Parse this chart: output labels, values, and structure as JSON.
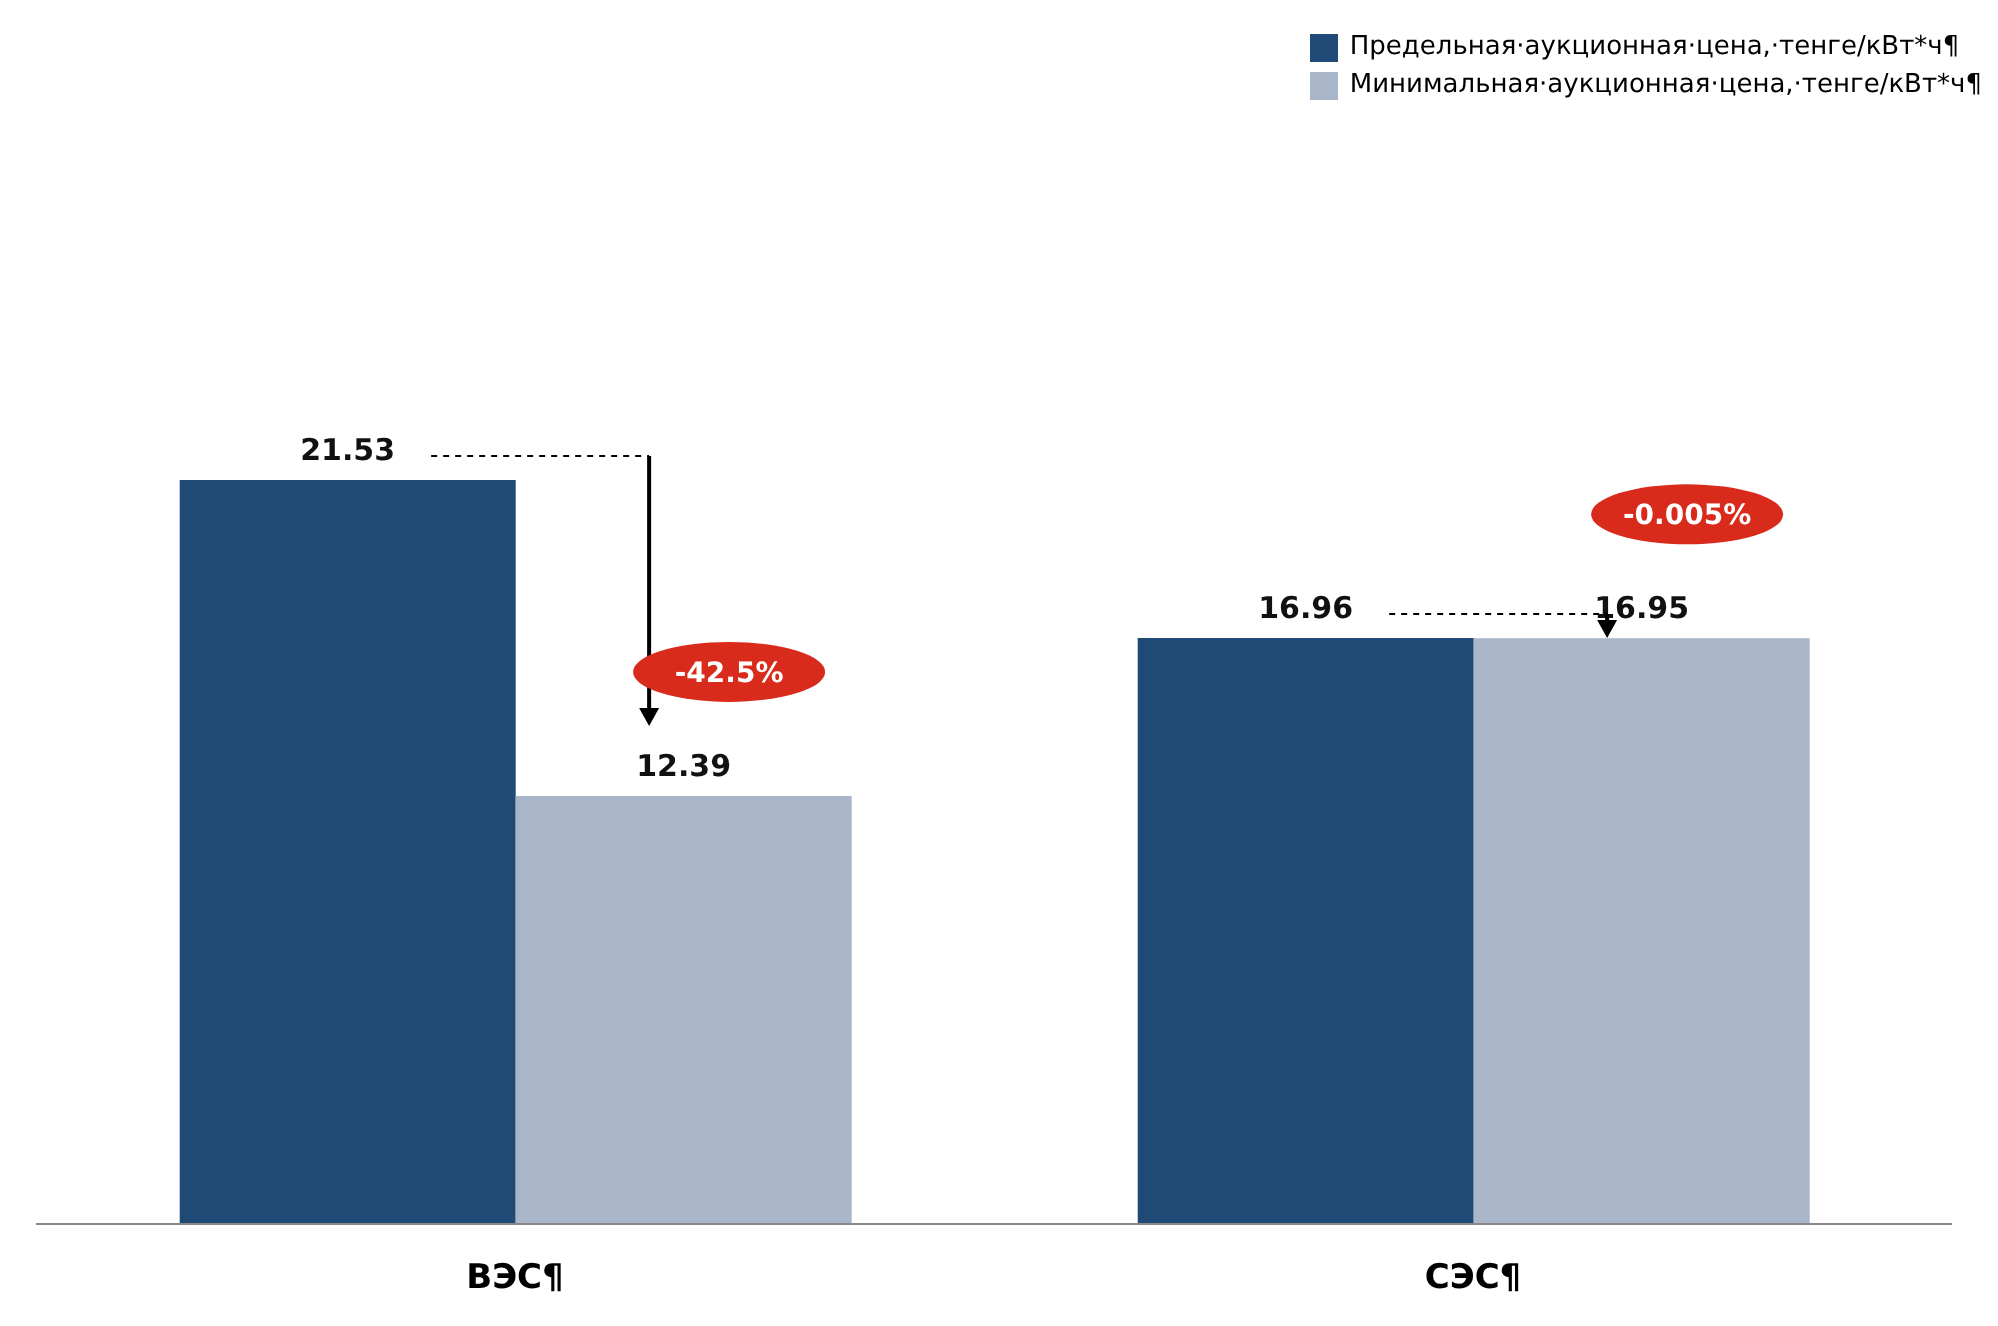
{
  "chart_data": {
    "type": "bar",
    "categories": [
      "ВЭС¶",
      "СЭС¶"
    ],
    "series": [
      {
        "name": "Предельная·аукционная·цена,·тенге/кВт*ч¶",
        "color": "#1f4a75",
        "values": [
          21.53,
          16.96
        ]
      },
      {
        "name": "Минимальная·аукционная·цена,·тенге/кВт*ч¶",
        "color": "#a9b5c9",
        "values": [
          12.39,
          16.95
        ]
      }
    ],
    "data_labels": true,
    "legend": "top right",
    "grid": false,
    "annotations": [
      "-42.5%",
      "-0.005%"
    ]
  }
}
